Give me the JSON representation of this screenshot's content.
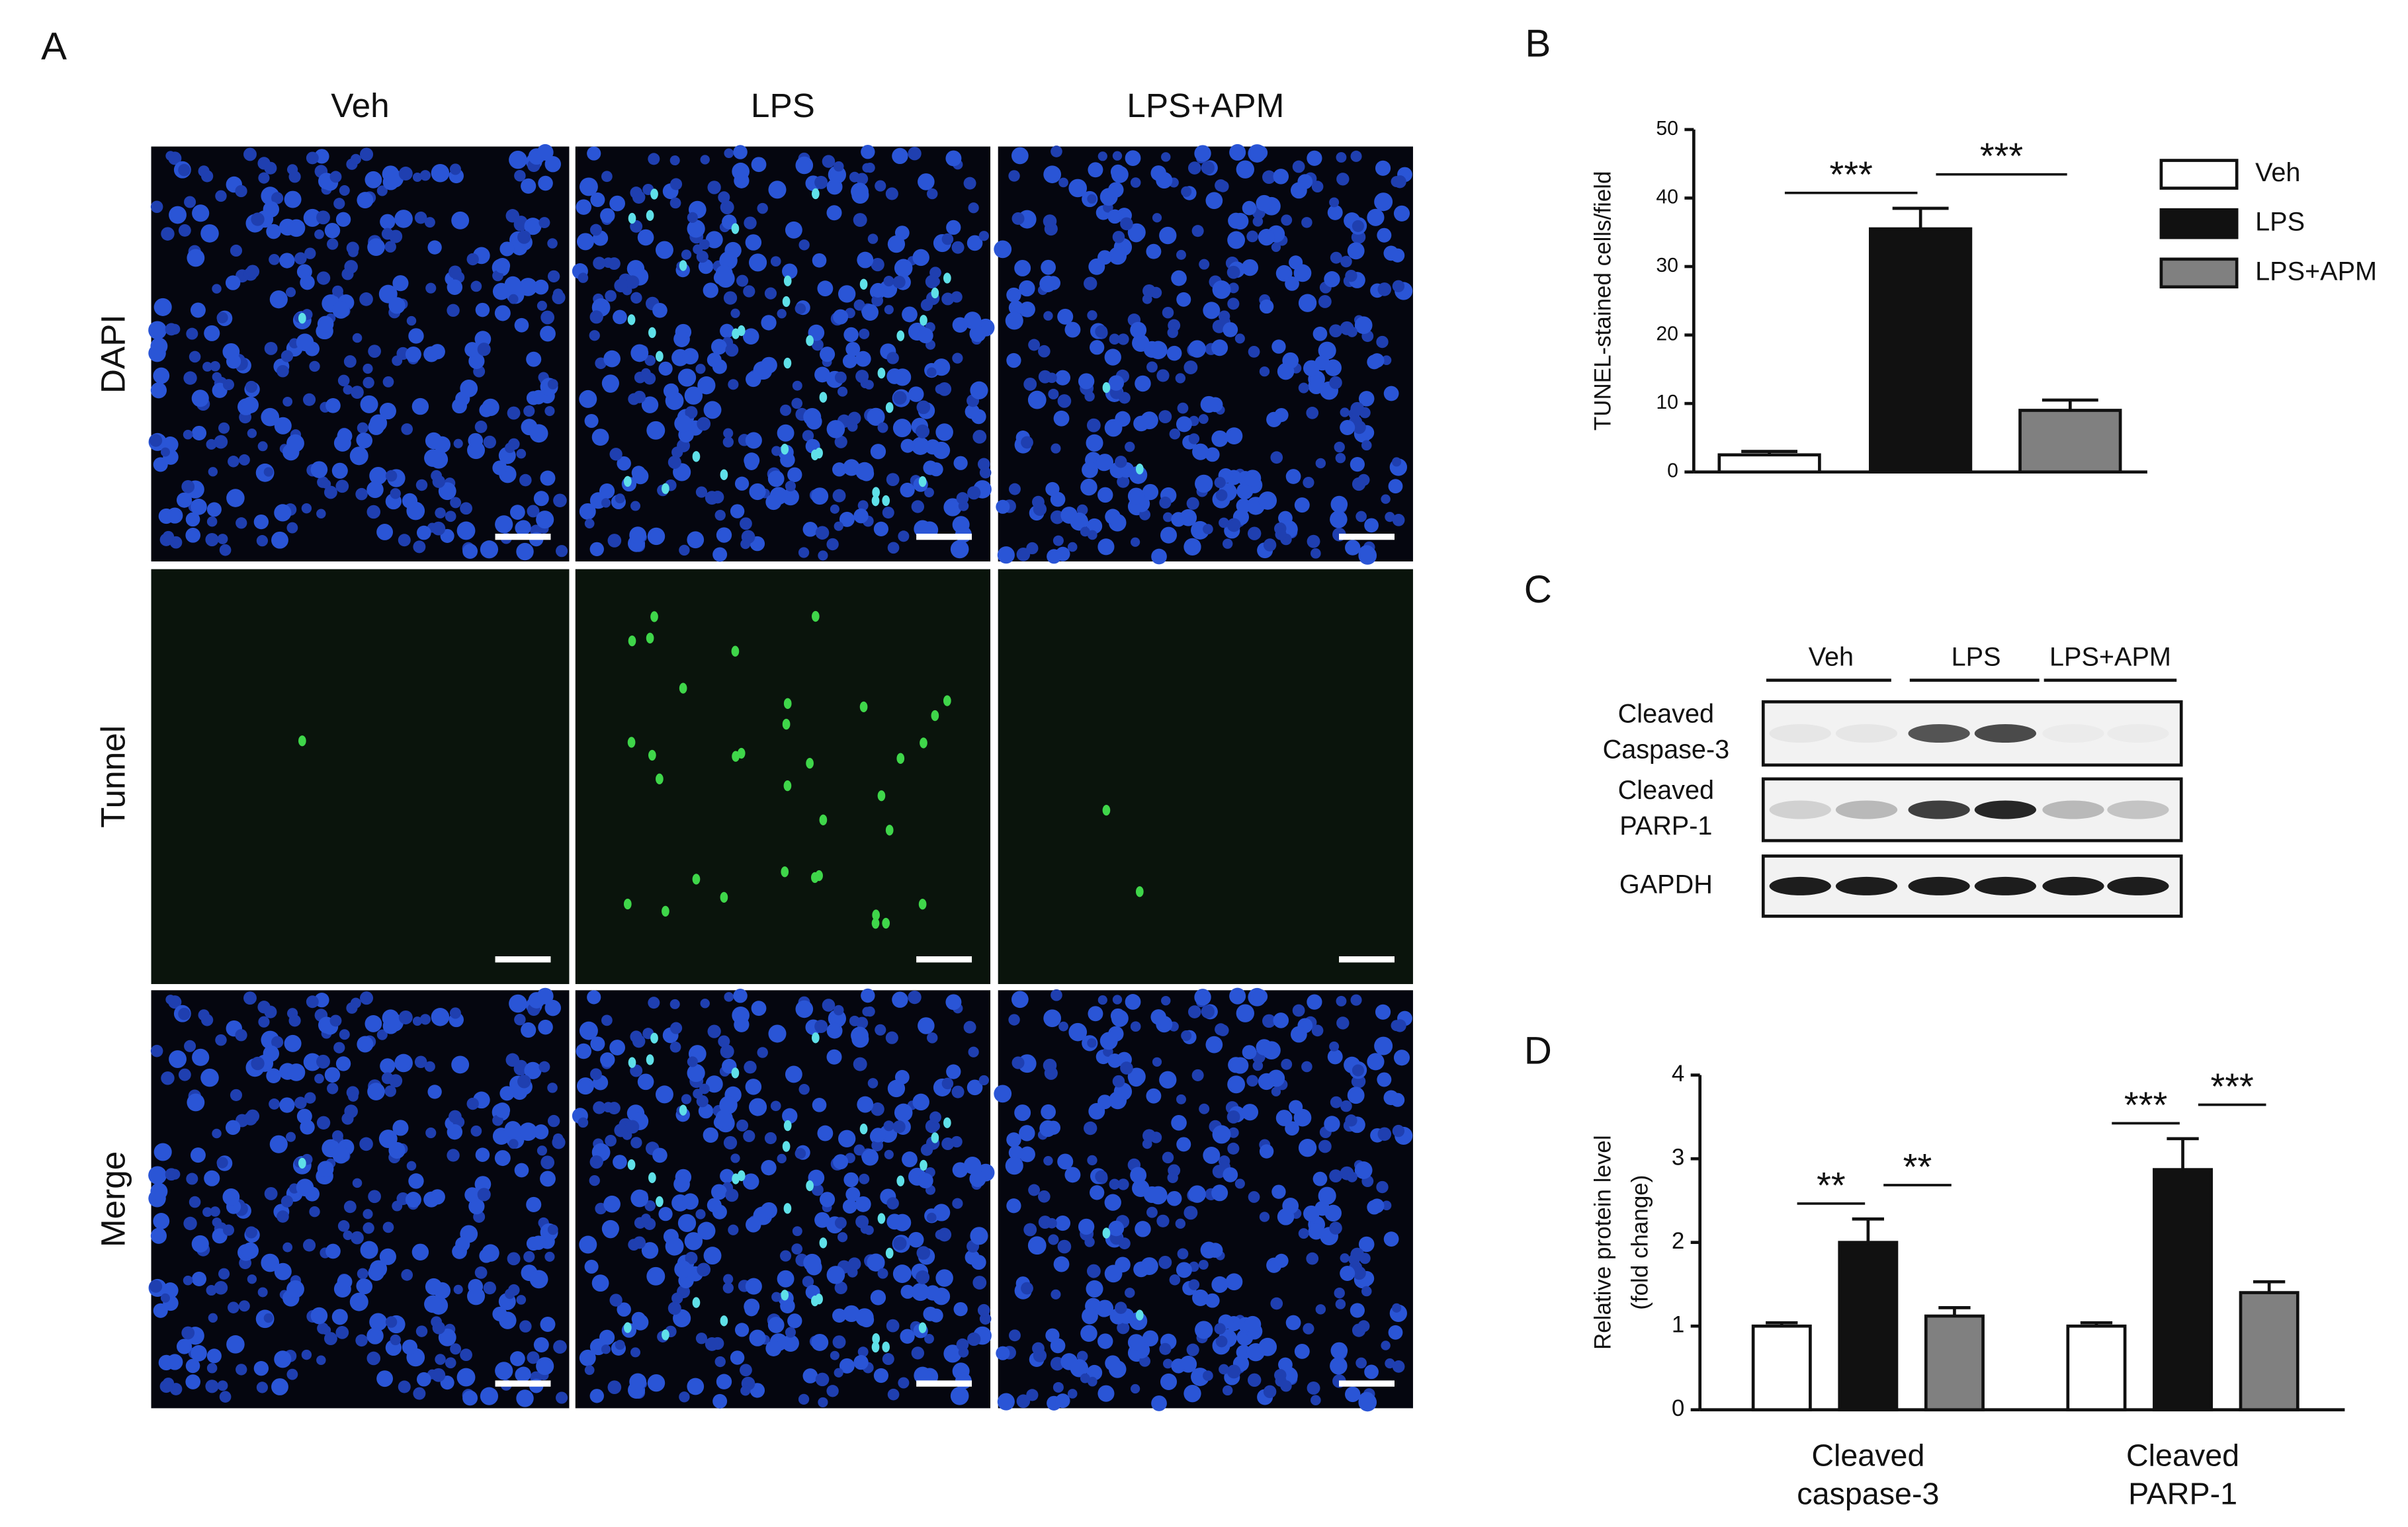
{
  "panels": {
    "letters": [
      "A",
      "B",
      "C",
      "D"
    ],
    "images": {
      "columns": [
        "Veh",
        "LPS",
        "LPS+APM"
      ],
      "rows": [
        "DAPI",
        "Tunnel",
        "Merge"
      ]
    },
    "blot": {
      "lanes": [
        "Veh",
        "LPS",
        "LPS+APM"
      ],
      "rows": [
        [
          "Cleaved",
          "Caspase-3"
        ],
        [
          "Cleaved",
          "PARP-1"
        ],
        [
          "GAPDH"
        ]
      ]
    }
  },
  "chart_data": [
    {
      "type": "bar",
      "ylabel": [
        "TUNEL-stained cells/field"
      ],
      "categories": [
        null
      ],
      "series": [
        {
          "name": "Veh",
          "color": "#ffffff",
          "values": [
            2.5
          ],
          "errors": [
            0.5
          ]
        },
        {
          "name": "LPS",
          "color": "#111111",
          "values": [
            35.5
          ],
          "errors": [
            3
          ]
        },
        {
          "name": "LPS+APM",
          "color": "#808080",
          "values": [
            9
          ],
          "errors": [
            1.5
          ]
        }
      ],
      "ylim": [
        0,
        50
      ],
      "yticks": [
        0,
        10,
        20,
        30,
        40,
        50
      ],
      "annotations": [
        "***",
        "***"
      ],
      "legend": "right"
    },
    {
      "type": "bar",
      "ylabel": [
        "Relative protein level",
        "(fold change)"
      ],
      "categories": [
        [
          "Cleaved",
          "caspase-3"
        ],
        [
          "Cleaved",
          "PARP-1"
        ]
      ],
      "series": [
        {
          "name": "Veh",
          "color": "#ffffff",
          "values": [
            1.0,
            1.0
          ],
          "errors": [
            0.04,
            0.04
          ]
        },
        {
          "name": "LPS",
          "color": "#111111",
          "values": [
            2.0,
            2.87
          ],
          "errors": [
            0.28,
            0.37
          ]
        },
        {
          "name": "LPS+APM",
          "color": "#808080",
          "values": [
            1.12,
            1.4
          ],
          "errors": [
            0.1,
            0.13
          ]
        }
      ],
      "ylim": [
        0,
        4
      ],
      "yticks": [
        0,
        1,
        2,
        3,
        4
      ],
      "annotations": [
        "**",
        "**",
        "***",
        "***"
      ],
      "legend": false
    }
  ]
}
